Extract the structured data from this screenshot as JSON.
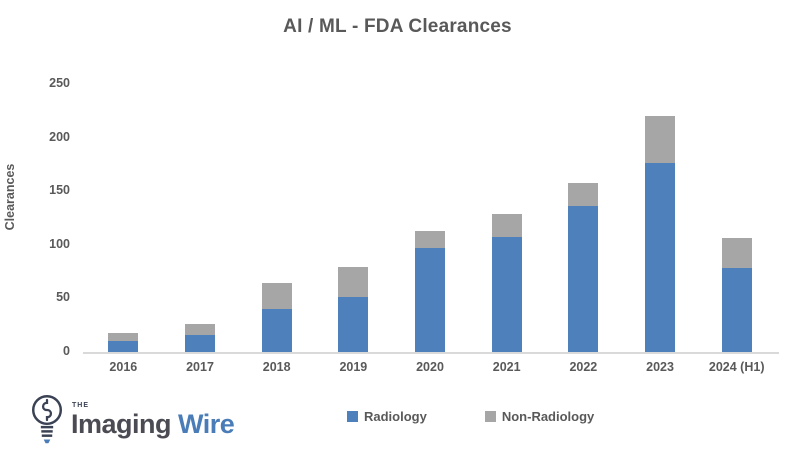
{
  "title": "AI / ML - FDA Clearances",
  "chart_data": {
    "type": "bar",
    "stacked": true,
    "title": "AI / ML - FDA Clearances",
    "categories": [
      "2016",
      "2017",
      "2018",
      "2019",
      "2020",
      "2021",
      "2022",
      "2023",
      "2024 (H1)"
    ],
    "series": [
      {
        "name": "Radiology",
        "color": "#4e80bc",
        "values": [
          10,
          16,
          40,
          51,
          97,
          107,
          136,
          176,
          78
        ]
      },
      {
        "name": "Non-Radiology",
        "color": "#a6a6a6",
        "values": [
          8,
          10,
          24,
          28,
          16,
          22,
          22,
          44,
          28
        ]
      }
    ],
    "xlabel": "",
    "ylabel": "Clearances",
    "ylim": [
      0,
      250
    ],
    "yticks": [
      0,
      50,
      100,
      150,
      200,
      250
    ],
    "grid": false,
    "legend_position": "bottom-center",
    "axis_line_color": "#d9d9d9",
    "text_color": "#595959"
  },
  "logo": {
    "the": "THE",
    "imaging": "Imaging",
    "wire": "Wire",
    "icon": "lightbulb-icon",
    "imaging_color": "#4b4b54",
    "wire_color": "#4a7db8"
  }
}
